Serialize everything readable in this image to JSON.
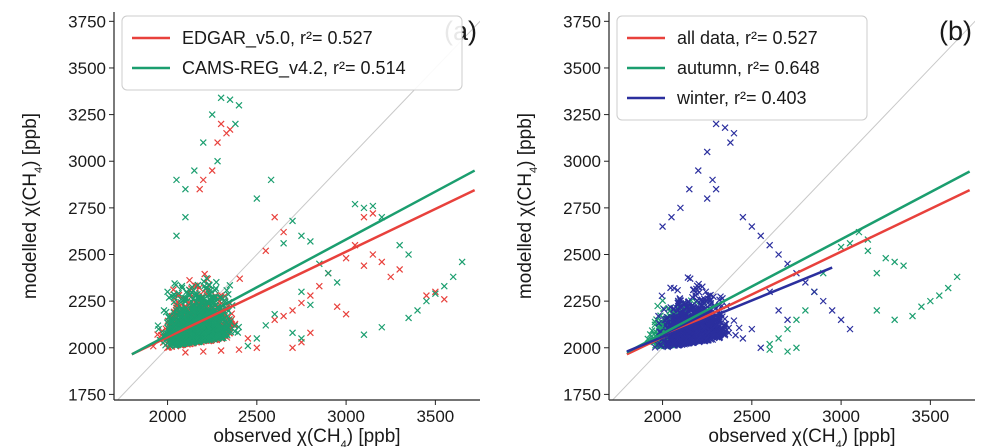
{
  "chart_data": [
    {
      "type": "scatter",
      "panel_label": "(a)",
      "xlabel": {
        "pre": "observed χ(CH",
        "sub": "4",
        "post": ") [ppb]"
      },
      "ylabel": {
        "pre": "modelled χ(CH",
        "sub": "4",
        "post": ") [ppb]"
      },
      "xlim": [
        1700,
        3750
      ],
      "ylim": [
        1720,
        3800
      ],
      "xticks": [
        2000,
        2500,
        3000,
        3500
      ],
      "yticks": [
        1750,
        2000,
        2250,
        2500,
        2750,
        3000,
        3250,
        3500,
        3750
      ],
      "grid": false,
      "legend": "top-left",
      "one_to_one_line": true,
      "series": [
        {
          "name": "EDGAR_v5.0, r²= 0.527",
          "color": "#e8413c",
          "fit": {
            "x": [
              1800,
              3720
            ],
            "y": [
              1965,
              2845
            ]
          },
          "points": [
            [
              3000,
              2480
            ],
            [
              3050,
              2550
            ],
            [
              3100,
              2440
            ],
            [
              3150,
              2500
            ],
            [
              3200,
              2460
            ],
            [
              3250,
              2380
            ],
            [
              3300,
              2420
            ],
            [
              2900,
              2400
            ],
            [
              2850,
              2330
            ],
            [
              2800,
              2280
            ],
            [
              2750,
              2240
            ],
            [
              2700,
              2200
            ],
            [
              2650,
              2170
            ],
            [
              2600,
              2150
            ],
            [
              2950,
              2220
            ],
            [
              3000,
              2180
            ],
            [
              2800,
              2080
            ],
            [
              2750,
              2030
            ],
            [
              2700,
              2000
            ],
            [
              2300,
              3200
            ],
            [
              2350,
              3170
            ],
            [
              2280,
              3100
            ],
            [
              2330,
              3150
            ],
            [
              2200,
              2900
            ],
            [
              2250,
              2950
            ],
            [
              2180,
              2850
            ],
            [
              2600,
              2700
            ],
            [
              2650,
              2620
            ],
            [
              2550,
              2520
            ],
            [
              3450,
              2280
            ],
            [
              3500,
              2300
            ],
            [
              3550,
              2260
            ],
            [
              2450,
              2050
            ],
            [
              2500,
              2000
            ],
            [
              2400,
              1990
            ],
            [
              2300,
              1985
            ],
            [
              2200,
              1980
            ],
            [
              2100,
              1975
            ],
            [
              3100,
              2700
            ],
            [
              3150,
              2720
            ]
          ]
        },
        {
          "name": "CAMS-REG_v4.2, r²= 0.514",
          "color": "#1b9e6f",
          "fit": {
            "x": [
              1800,
              3720
            ],
            "y": [
              1965,
              2950
            ]
          },
          "points": [
            [
              2300,
              3340
            ],
            [
              2350,
              3330
            ],
            [
              2400,
              3300
            ],
            [
              2250,
              3250
            ],
            [
              2380,
              3200
            ],
            [
              2200,
              3100
            ],
            [
              2280,
              3000
            ],
            [
              2150,
              2950
            ],
            [
              2050,
              2900
            ],
            [
              2100,
              2850
            ],
            [
              3050,
              2770
            ],
            [
              3100,
              2750
            ],
            [
              3150,
              2760
            ],
            [
              3200,
              2700
            ],
            [
              2700,
              2680
            ],
            [
              2750,
              2600
            ],
            [
              2800,
              2570
            ],
            [
              2650,
              2560
            ],
            [
              3300,
              2550
            ],
            [
              3350,
              2500
            ],
            [
              3650,
              2460
            ],
            [
              3600,
              2380
            ],
            [
              3550,
              2330
            ],
            [
              3500,
              2290
            ],
            [
              3450,
              2250
            ],
            [
              3400,
              2200
            ],
            [
              3350,
              2160
            ],
            [
              2850,
              2450
            ],
            [
              2900,
              2400
            ],
            [
              2950,
              2350
            ],
            [
              2750,
              2300
            ],
            [
              2800,
              2230
            ],
            [
              2600,
              2180
            ],
            [
              2550,
              2120
            ],
            [
              2700,
              2080
            ],
            [
              2750,
              2050
            ],
            [
              3100,
              2070
            ],
            [
              3200,
              2110
            ],
            [
              2500,
              2050
            ],
            [
              2450,
              2010
            ],
            [
              2000,
              2300
            ],
            [
              1980,
              2200
            ],
            [
              1950,
              2100
            ],
            [
              2050,
              2600
            ],
            [
              2100,
              2700
            ],
            [
              2500,
              2800
            ],
            [
              2580,
              2900
            ]
          ]
        }
      ]
    },
    {
      "type": "scatter",
      "panel_label": "(b)",
      "xlabel": {
        "pre": "observed χ(CH",
        "sub": "4",
        "post": ") [ppb]"
      },
      "ylabel": {
        "pre": "modelled χ(CH",
        "sub": "4",
        "post": ") [ppb]"
      },
      "xlim": [
        1700,
        3750
      ],
      "ylim": [
        1720,
        3800
      ],
      "xticks": [
        2000,
        2500,
        3000,
        3500
      ],
      "yticks": [
        1750,
        2000,
        2250,
        2500,
        2750,
        3000,
        3250,
        3500,
        3750
      ],
      "grid": false,
      "legend": "top-left",
      "one_to_one_line": true,
      "series": [
        {
          "name": "all data, r²= 0.527",
          "color": "#e8413c",
          "fit": {
            "x": [
              1800,
              3720
            ],
            "y": [
              1965,
              2845
            ]
          },
          "points": []
        },
        {
          "name": "autumn, r²= 0.648",
          "color": "#1b9e6f",
          "fit": {
            "x": [
              1800,
              3720
            ],
            "y": [
              1975,
              2945
            ]
          },
          "points": [
            [
              3000,
              2540
            ],
            [
              3050,
              2560
            ],
            [
              3150,
              2520
            ],
            [
              3250,
              2480
            ],
            [
              3300,
              2460
            ],
            [
              3150,
              2580
            ],
            [
              3100,
              2620
            ],
            [
              3200,
              2400
            ],
            [
              3350,
              2440
            ],
            [
              3650,
              2380
            ],
            [
              3600,
              2320
            ],
            [
              3550,
              2280
            ],
            [
              3500,
              2250
            ],
            [
              3450,
              2220
            ],
            [
              3400,
              2170
            ],
            [
              3300,
              2150
            ],
            [
              3200,
              2200
            ],
            [
              2900,
              2400
            ],
            [
              2850,
              2300
            ],
            [
              2800,
              2200
            ],
            [
              2750,
              2150
            ],
            [
              2700,
              2100
            ],
            [
              2650,
              2050
            ],
            [
              2600,
              2020
            ],
            [
              2750,
              2000
            ],
            [
              2700,
              1980
            ],
            [
              2600,
              1990
            ]
          ]
        },
        {
          "name": "winter, r²= 0.403",
          "color": "#2b2f9e",
          "fit": {
            "x": [
              1800,
              2950
            ],
            "y": [
              1980,
              2430
            ]
          },
          "points": [
            [
              2300,
              3200
            ],
            [
              2350,
              3180
            ],
            [
              2400,
              3150
            ],
            [
              2380,
              3100
            ],
            [
              2250,
              3050
            ],
            [
              2200,
              2950
            ],
            [
              2280,
              2900
            ],
            [
              2150,
              2850
            ],
            [
              2300,
              2850
            ],
            [
              2250,
              2800
            ],
            [
              2100,
              2750
            ],
            [
              2050,
              2700
            ],
            [
              2000,
              2650
            ],
            [
              2450,
              2700
            ],
            [
              2500,
              2650
            ],
            [
              2550,
              2600
            ],
            [
              2600,
              2550
            ],
            [
              2650,
              2500
            ],
            [
              2700,
              2450
            ],
            [
              2750,
              2400
            ],
            [
              2800,
              2350
            ],
            [
              2850,
              2300
            ],
            [
              2900,
              2250
            ],
            [
              2950,
              2200
            ],
            [
              3000,
              2150
            ],
            [
              3050,
              2100
            ],
            [
              2600,
              2300
            ],
            [
              2650,
              2200
            ],
            [
              2700,
              2150
            ],
            [
              2500,
              2100
            ],
            [
              2450,
              2050
            ],
            [
              2550,
              2000
            ]
          ]
        }
      ]
    }
  ]
}
